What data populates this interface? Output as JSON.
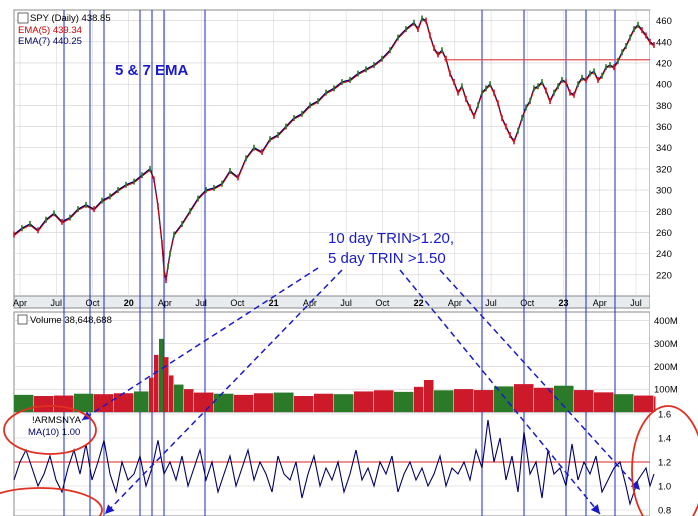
{
  "chart_data": [
    {
      "type": "line",
      "panel": "price",
      "legend": [
        {
          "label": "SPY (Daily) 438.85",
          "color": "#000000"
        },
        {
          "label": "EMA(5) 439.34",
          "color": "#cc0000"
        },
        {
          "label": "EMA(7) 440.25",
          "color": "#000066"
        }
      ],
      "annotation": "5 & 7 EMA",
      "ylim": [
        200,
        470
      ],
      "yticks": [
        "460",
        "440",
        "420",
        "400",
        "380",
        "360",
        "340",
        "320",
        "300",
        "280",
        "260",
        "240",
        "220"
      ],
      "reference_level": 423,
      "x": [
        0,
        8,
        16,
        24,
        32,
        40,
        48,
        56,
        64,
        72,
        80,
        88,
        96,
        104,
        112,
        120,
        128,
        136,
        140,
        144,
        148,
        150,
        152,
        154,
        156,
        160,
        168,
        176,
        184,
        192,
        200,
        208,
        216,
        224,
        232,
        240,
        248,
        256,
        264,
        272,
        280,
        288,
        296,
        304,
        312,
        320,
        328,
        336,
        344,
        352,
        360,
        368,
        376,
        384,
        392,
        400,
        404,
        408,
        412,
        416,
        420,
        424,
        428,
        432,
        436,
        440,
        444,
        448,
        452,
        456,
        460,
        464,
        468,
        472,
        476,
        480,
        484,
        488,
        492,
        496,
        500,
        504,
        508,
        512,
        516,
        520,
        524,
        528,
        532,
        536,
        540,
        544,
        548,
        552,
        556,
        560,
        564,
        568,
        572,
        576,
        580,
        584,
        588,
        592,
        596,
        600,
        604,
        608,
        612,
        616,
        620,
        624,
        628,
        632,
        636,
        640
      ],
      "values": [
        258,
        264,
        268,
        262,
        272,
        278,
        270,
        274,
        282,
        286,
        282,
        290,
        294,
        300,
        305,
        308,
        314,
        320,
        310,
        285,
        250,
        225,
        215,
        228,
        240,
        258,
        268,
        280,
        292,
        300,
        302,
        306,
        318,
        312,
        330,
        340,
        336,
        348,
        352,
        360,
        368,
        372,
        380,
        384,
        392,
        396,
        402,
        404,
        410,
        414,
        418,
        424,
        432,
        444,
        452,
        458,
        452,
        462,
        460,
        446,
        434,
        428,
        432,
        424,
        410,
        402,
        392,
        398,
        386,
        378,
        370,
        380,
        392,
        396,
        400,
        392,
        382,
        368,
        360,
        352,
        346,
        356,
        368,
        378,
        384,
        396,
        398,
        402,
        394,
        384,
        392,
        398,
        404,
        402,
        392,
        390,
        400,
        406,
        404,
        410,
        412,
        404,
        408,
        416,
        418,
        416,
        422,
        430,
        436,
        444,
        452,
        456,
        451,
        446,
        440,
        437
      ]
    },
    {
      "type": "bar",
      "panel": "volume",
      "legend": [
        {
          "label": "Volume 38,648,688",
          "color": "#000000"
        }
      ],
      "ylim": [
        0,
        420
      ],
      "yticks": [
        "400M",
        "300M",
        "200M",
        "100M"
      ],
      "x": [
        0,
        20,
        40,
        60,
        80,
        100,
        120,
        135,
        140,
        145,
        150,
        155,
        160,
        170,
        180,
        200,
        220,
        240,
        260,
        280,
        300,
        320,
        340,
        360,
        380,
        400,
        410,
        420,
        440,
        460,
        480,
        500,
        520,
        540,
        560,
        580,
        600,
        620,
        640
      ],
      "values": [
        75,
        70,
        72,
        80,
        78,
        82,
        90,
        150,
        250,
        320,
        240,
        160,
        120,
        100,
        85,
        80,
        75,
        82,
        85,
        70,
        80,
        78,
        90,
        95,
        88,
        110,
        140,
        95,
        100,
        96,
        112,
        122,
        106,
        115,
        96,
        86,
        78,
        72,
        68
      ]
    },
    {
      "type": "line",
      "panel": "trin",
      "legend": [
        {
          "label": "!ARMSNYA",
          "color": "#000000"
        },
        {
          "label": "MA(10) 1.00",
          "color": "#000066"
        }
      ],
      "ylim": [
        0.75,
        1.6
      ],
      "yticks": [
        "1.6",
        "1.4",
        "1.2",
        "1.0",
        "0.8"
      ],
      "reference_level": 1.2,
      "x": [
        0,
        6,
        12,
        18,
        24,
        30,
        36,
        42,
        48,
        54,
        60,
        66,
        72,
        78,
        84,
        90,
        96,
        102,
        108,
        114,
        120,
        126,
        132,
        138,
        144,
        150,
        156,
        162,
        168,
        174,
        180,
        186,
        192,
        198,
        204,
        210,
        216,
        222,
        228,
        234,
        240,
        246,
        252,
        258,
        264,
        270,
        276,
        282,
        288,
        294,
        300,
        306,
        312,
        318,
        324,
        330,
        336,
        342,
        348,
        354,
        360,
        366,
        372,
        378,
        384,
        390,
        396,
        402,
        408,
        414,
        420,
        426,
        432,
        438,
        444,
        450,
        456,
        462,
        468,
        474,
        480,
        486,
        492,
        498,
        504,
        510,
        516,
        522,
        528,
        534,
        540,
        546,
        552,
        558,
        564,
        570,
        576,
        582,
        588,
        594,
        600,
        606,
        612,
        616,
        620,
        624,
        628,
        632,
        636,
        640
      ],
      "values": [
        1.05,
        1.2,
        1.3,
        1.15,
        1.0,
        1.1,
        1.25,
        1.05,
        0.95,
        1.15,
        1.3,
        1.1,
        1.35,
        1.05,
        1.2,
        1.38,
        1.1,
        0.95,
        1.2,
        1.05,
        1.1,
        1.25,
        1.0,
        1.15,
        1.38,
        1.1,
        1.2,
        1.05,
        1.25,
        1.0,
        1.15,
        1.3,
        1.05,
        1.2,
        0.95,
        1.1,
        1.25,
        1.0,
        1.15,
        1.3,
        1.05,
        1.2,
        1.1,
        0.95,
        1.25,
        1.1,
        1.05,
        1.2,
        0.9,
        1.1,
        1.25,
        1.0,
        1.15,
        1.05,
        1.2,
        0.95,
        1.1,
        1.3,
        1.05,
        1.15,
        1.0,
        1.2,
        1.1,
        1.25,
        0.95,
        1.1,
        1.2,
        1.05,
        1.15,
        1.0,
        1.1,
        1.25,
        1.0,
        1.15,
        1.1,
        1.2,
        1.05,
        1.3,
        1.15,
        1.55,
        1.2,
        1.4,
        1.05,
        1.25,
        0.95,
        1.45,
        1.1,
        1.2,
        0.9,
        1.3,
        1.1,
        1.15,
        1.0,
        1.35,
        1.05,
        1.2,
        1.1,
        1.25,
        0.95,
        1.05,
        1.15,
        1.2,
        1.0,
        0.85,
        0.95,
        1.05,
        1.1,
        1.15,
        1.0,
        1.1
      ]
    }
  ],
  "x_axis_labels": [
    "Apr",
    "Jul",
    "Oct",
    "20",
    "Apr",
    "Jul",
    "Oct",
    "21",
    "Apr",
    "Jul",
    "Oct",
    "22",
    "Apr",
    "Jul",
    "Oct",
    "23",
    "Apr",
    "Jul"
  ],
  "vertical_signal_lines": [
    50,
    76,
    90,
    126,
    138,
    150,
    191,
    468,
    510,
    552,
    572,
    601
  ],
  "callout": {
    "line1": "10 day TRIN>1.20,",
    "line2": "5 day TRIN >1.50",
    "color": "#1a1acc"
  },
  "colors": {
    "up_bar": "#2a7a2a",
    "down_bar": "#cc1a2a",
    "grid": "#d0d0d0",
    "axis_bg": "#e8ecef",
    "annotation_blue": "#1a1acc",
    "highlight_red": "#e03020"
  }
}
